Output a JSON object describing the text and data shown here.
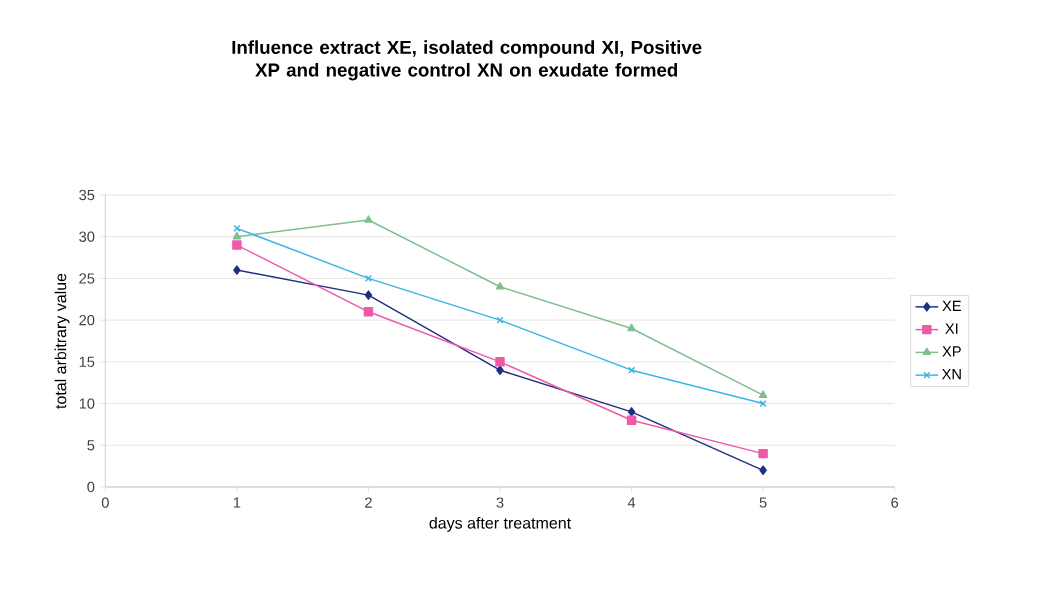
{
  "chart_data": {
    "type": "line",
    "title": "Influence extract XE, isolated compound XI, Positive XP and negative control XN on exudate formed",
    "xlabel": "days after treatment",
    "ylabel": "total arbitrary value",
    "x": [
      1,
      2,
      3,
      4,
      5
    ],
    "series": [
      {
        "name": "XE",
        "color": "#1f2f7f",
        "marker": "diamond",
        "values": [
          26,
          23,
          14,
          9,
          2
        ]
      },
      {
        "name": "XI",
        "color": "#ee5aa8",
        "marker": "square",
        "values": [
          29,
          21,
          15,
          8,
          4
        ]
      },
      {
        "name": "XP",
        "color": "#7fbf8f",
        "marker": "triangle",
        "values": [
          30,
          32,
          24,
          19,
          11
        ]
      },
      {
        "name": "XN",
        "color": "#3cb4e6",
        "marker": "cross",
        "values": [
          31,
          25,
          20,
          14,
          10
        ]
      }
    ],
    "xlim": [
      0,
      6
    ],
    "xticks": [
      0,
      1,
      2,
      3,
      4,
      5,
      6
    ],
    "ylim": [
      0,
      35
    ],
    "yticks": [
      0,
      5,
      10,
      15,
      20,
      25,
      30,
      35
    ],
    "grid": "y",
    "legend": "right"
  }
}
